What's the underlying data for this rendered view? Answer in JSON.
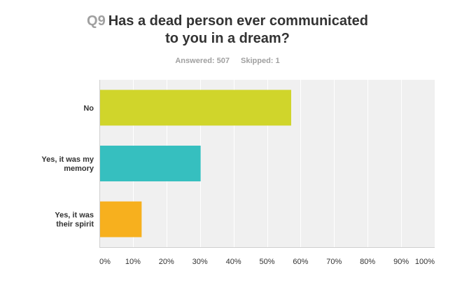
{
  "question": {
    "number": "Q9",
    "lines": [
      "Has a dead person ever communicated",
      "to you in a dream?"
    ]
  },
  "meta": {
    "answered": "Answered: 507",
    "skipped": "Skipped: 1"
  },
  "chart_data": {
    "type": "bar",
    "orientation": "horizontal",
    "categories": [
      [
        "No"
      ],
      [
        "Yes, it was my",
        "memory"
      ],
      [
        "Yes, it was",
        "their spirit"
      ]
    ],
    "values": [
      57.2,
      30.2,
      12.6
    ],
    "colors": [
      "#d0d52b",
      "#36bfbf",
      "#f7b01e"
    ],
    "xlim": [
      0,
      100
    ],
    "tick_values": [
      0,
      10,
      20,
      30,
      40,
      50,
      60,
      70,
      80,
      90,
      100
    ],
    "tick_labels": [
      "0%",
      "10%",
      "20%",
      "30%",
      "40%",
      "50%",
      "60%",
      "70%",
      "80%",
      "90%",
      "100%"
    ],
    "grid": true
  }
}
